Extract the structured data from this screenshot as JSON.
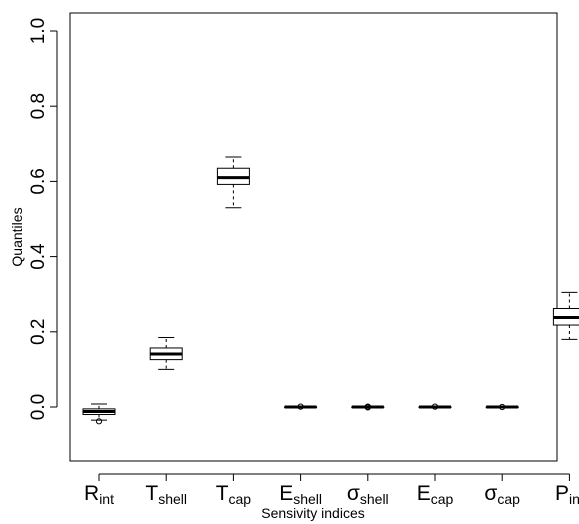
{
  "chart_data": {
    "type": "box",
    "xlabel": "Sensivity indices",
    "ylabel": "Quantiles",
    "ylim": [
      -0.14,
      1.04
    ],
    "yticks": [
      0.0,
      0.2,
      0.4,
      0.6,
      0.8,
      1.0
    ],
    "ytick_labels": [
      "0.0",
      "0.2",
      "0.4",
      "0.6",
      "0.8",
      "1.0"
    ],
    "categories": [
      {
        "main": "R",
        "sub": "int"
      },
      {
        "main": "T",
        "sub": "shell"
      },
      {
        "main": "T",
        "sub": "cap"
      },
      {
        "main": "E",
        "sub": "shell"
      },
      {
        "main": "σ",
        "sub": "shell"
      },
      {
        "main": "E",
        "sub": "cap"
      },
      {
        "main": "σ",
        "sub": "cap"
      },
      {
        "main": "P",
        "sub": "int"
      }
    ],
    "boxes": [
      {
        "min": -0.035,
        "q1": -0.02,
        "median": -0.012,
        "q3": -0.005,
        "max": 0.008,
        "outliers": [
          -0.038
        ]
      },
      {
        "min": 0.1,
        "q1": 0.126,
        "median": 0.141,
        "q3": 0.157,
        "max": 0.185,
        "outliers": []
      },
      {
        "min": 0.53,
        "q1": 0.592,
        "median": 0.61,
        "q3": 0.635,
        "max": 0.665,
        "outliers": []
      },
      {
        "min": 0.0,
        "q1": 0.0,
        "median": 0.0,
        "q3": 0.0,
        "max": 0.0,
        "outliers": [
          0.001
        ]
      },
      {
        "min": 0.0,
        "q1": 0.0,
        "median": 0.0,
        "q3": 0.0,
        "max": 0.0,
        "outliers": [
          0.001,
          -0.001
        ]
      },
      {
        "min": 0.0,
        "q1": 0.0,
        "median": 0.0,
        "q3": 0.0,
        "max": 0.0,
        "outliers": [
          0.001
        ]
      },
      {
        "min": 0.0,
        "q1": 0.0,
        "median": 0.0,
        "q3": 0.0,
        "max": 0.0,
        "outliers": [
          0.0
        ]
      },
      {
        "min": 0.18,
        "q1": 0.218,
        "median": 0.238,
        "q3": 0.262,
        "max": 0.305,
        "outliers": []
      }
    ]
  }
}
